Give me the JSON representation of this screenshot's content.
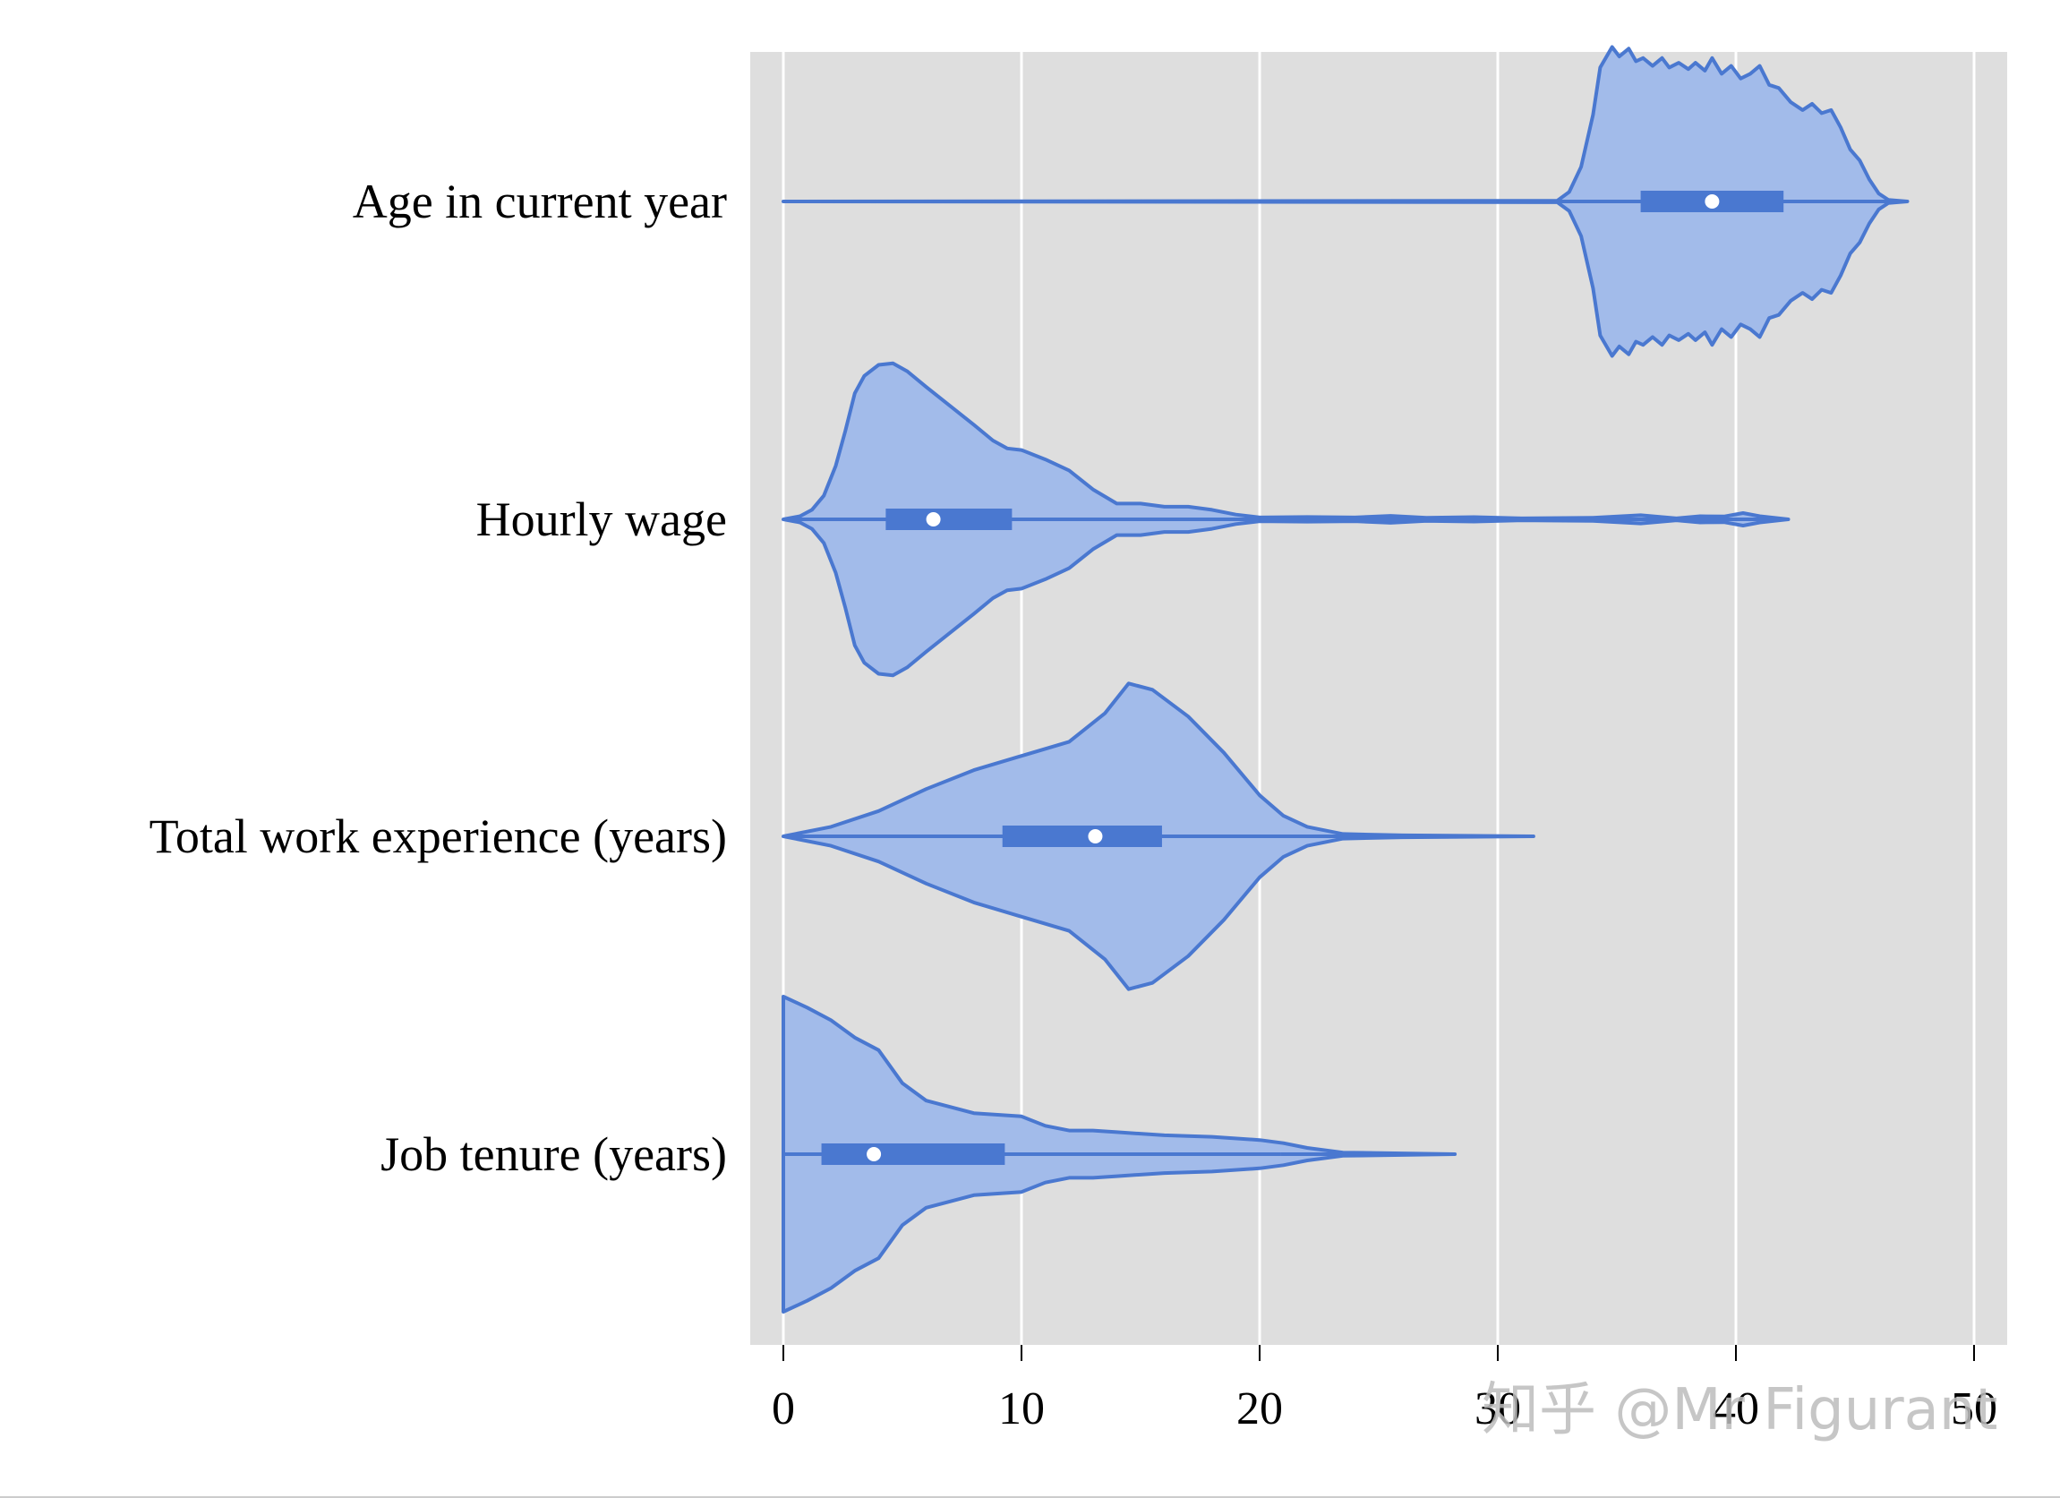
{
  "chart_data": {
    "type": "violin",
    "orientation": "horizontal",
    "categories": [
      "Age in current year",
      "Hourly wage",
      "Total work experience (years)",
      "Job tenure (years)"
    ],
    "xlim": [
      -1.4,
      51.5
    ],
    "x_ticks": [
      0,
      10,
      20,
      30,
      40,
      50
    ],
    "x_tick_labels": [
      "0",
      "10",
      "20",
      "30",
      "40",
      "50"
    ],
    "grid": "vertical",
    "colors": {
      "panel_background": "#dedede",
      "grid": "#ffffff",
      "violin_fill": "#a2bbea",
      "violin_edge": "#4a78d0",
      "box": "#4a78d0",
      "median": "#ffffff"
    },
    "series": [
      {
        "category": "Age in current year",
        "whisker": [
          0,
          47.2
        ],
        "iqr": [
          36,
          42
        ],
        "median": 39,
        "density": [
          [
            0,
            0
          ],
          [
            32.5,
            0.005
          ],
          [
            33.0,
            0.06
          ],
          [
            33.5,
            0.22
          ],
          [
            34.0,
            0.55
          ],
          [
            34.3,
            0.85
          ],
          [
            34.8,
            0.98
          ],
          [
            35.1,
            0.92
          ],
          [
            35.5,
            0.97
          ],
          [
            35.8,
            0.89
          ],
          [
            36.1,
            0.91
          ],
          [
            36.5,
            0.86
          ],
          [
            36.9,
            0.91
          ],
          [
            37.2,
            0.85
          ],
          [
            37.6,
            0.88
          ],
          [
            38.0,
            0.84
          ],
          [
            38.3,
            0.88
          ],
          [
            38.7,
            0.83
          ],
          [
            39.0,
            0.91
          ],
          [
            39.4,
            0.81
          ],
          [
            39.8,
            0.86
          ],
          [
            40.2,
            0.78
          ],
          [
            40.6,
            0.81
          ],
          [
            41.0,
            0.86
          ],
          [
            41.4,
            0.74
          ],
          [
            41.8,
            0.72
          ],
          [
            42.3,
            0.63
          ],
          [
            42.8,
            0.58
          ],
          [
            43.2,
            0.62
          ],
          [
            43.6,
            0.56
          ],
          [
            44.0,
            0.58
          ],
          [
            44.4,
            0.47
          ],
          [
            44.8,
            0.33
          ],
          [
            45.2,
            0.26
          ],
          [
            45.6,
            0.14
          ],
          [
            46.0,
            0.05
          ],
          [
            46.4,
            0.01
          ],
          [
            47.2,
            0
          ]
        ]
      },
      {
        "category": "Hourly wage",
        "whisker": [
          0,
          17.5
        ],
        "whisker_extra": [
          17.5,
          42.2
        ],
        "iqr": [
          4.3,
          9.6
        ],
        "median": 6.3,
        "density": [
          [
            0,
            0
          ],
          [
            0.7,
            0.02
          ],
          [
            1.2,
            0.06
          ],
          [
            1.7,
            0.15
          ],
          [
            2.2,
            0.34
          ],
          [
            2.6,
            0.56
          ],
          [
            3.0,
            0.8
          ],
          [
            3.4,
            0.91
          ],
          [
            4.0,
            0.98
          ],
          [
            4.6,
            0.99
          ],
          [
            5.2,
            0.94
          ],
          [
            6.0,
            0.84
          ],
          [
            7.0,
            0.72
          ],
          [
            8.0,
            0.6
          ],
          [
            8.8,
            0.5
          ],
          [
            9.4,
            0.45
          ],
          [
            10.0,
            0.44
          ],
          [
            11.0,
            0.38
          ],
          [
            12.0,
            0.31
          ],
          [
            13.0,
            0.19
          ],
          [
            14.0,
            0.1
          ],
          [
            15.0,
            0.1
          ],
          [
            16.0,
            0.08
          ],
          [
            17.0,
            0.08
          ],
          [
            18.0,
            0.06
          ],
          [
            19.0,
            0.03
          ],
          [
            20.0,
            0.012
          ],
          [
            22.0,
            0.015
          ],
          [
            24.0,
            0.012
          ],
          [
            25.5,
            0.022
          ],
          [
            27.0,
            0.01
          ],
          [
            29.0,
            0.014
          ],
          [
            31.0,
            0.006
          ],
          [
            34.0,
            0.01
          ],
          [
            36.0,
            0.026
          ],
          [
            37.5,
            0.006
          ],
          [
            38.5,
            0.02
          ],
          [
            39.5,
            0.018
          ],
          [
            40.3,
            0.04
          ],
          [
            41.0,
            0.02
          ],
          [
            42.2,
            0
          ]
        ]
      },
      {
        "category": "Total work experience (years)",
        "whisker": [
          0,
          31.5
        ],
        "iqr": [
          9.2,
          15.9
        ],
        "median": 13.1,
        "density": [
          [
            0,
            0
          ],
          [
            2.0,
            0.06
          ],
          [
            4.0,
            0.16
          ],
          [
            6.0,
            0.3
          ],
          [
            8.0,
            0.42
          ],
          [
            10.0,
            0.51
          ],
          [
            12.0,
            0.6
          ],
          [
            13.5,
            0.78
          ],
          [
            14.5,
            0.97
          ],
          [
            15.5,
            0.93
          ],
          [
            17.0,
            0.76
          ],
          [
            18.5,
            0.53
          ],
          [
            20.0,
            0.26
          ],
          [
            21.0,
            0.13
          ],
          [
            22.0,
            0.06
          ],
          [
            23.5,
            0.015
          ],
          [
            26.0,
            0.006
          ],
          [
            31.5,
            0
          ]
        ]
      },
      {
        "category": "Job tenure (years)",
        "whisker": [
          0,
          20.9
        ],
        "whisker_extra": [
          20.9,
          28.2
        ],
        "iqr": [
          1.6,
          9.3
        ],
        "median": 3.8,
        "density": [
          [
            0,
            1.0
          ],
          [
            1.0,
            0.93
          ],
          [
            2.0,
            0.85
          ],
          [
            3.0,
            0.74
          ],
          [
            4.0,
            0.66
          ],
          [
            5.0,
            0.45
          ],
          [
            6.0,
            0.34
          ],
          [
            7.0,
            0.3
          ],
          [
            8.0,
            0.26
          ],
          [
            9.0,
            0.25
          ],
          [
            10.0,
            0.24
          ],
          [
            11.0,
            0.18
          ],
          [
            12.0,
            0.15
          ],
          [
            13.0,
            0.15
          ],
          [
            14.0,
            0.14
          ],
          [
            16.0,
            0.12
          ],
          [
            18.0,
            0.11
          ],
          [
            20.0,
            0.09
          ],
          [
            21.0,
            0.07
          ],
          [
            22.0,
            0.04
          ],
          [
            23.5,
            0.01
          ],
          [
            28.2,
            0
          ]
        ]
      }
    ]
  },
  "watermark": {
    "text": "知乎 @Mr Figurant"
  }
}
